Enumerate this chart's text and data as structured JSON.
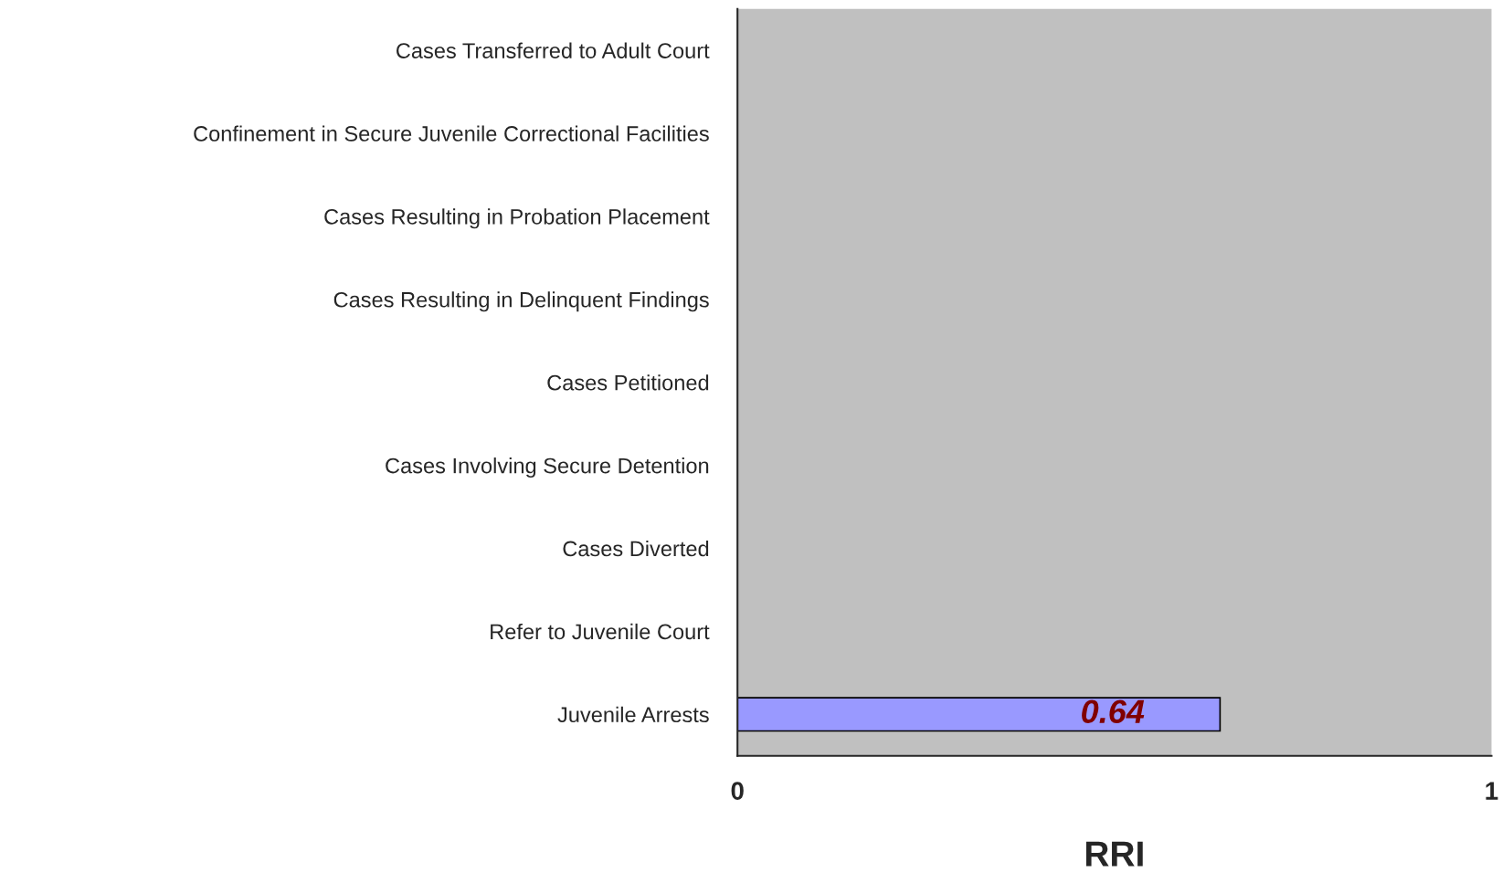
{
  "chart_data": {
    "type": "bar",
    "orientation": "horizontal",
    "xlabel": "RRI",
    "categories": [
      "Cases Transferred to Adult Court",
      "Confinement in Secure Juvenile Correctional Facilities",
      "Cases Resulting in Probation Placement",
      "Cases Resulting in Delinquent Findings",
      "Cases Petitioned",
      "Cases Involving Secure Detention",
      "Cases Diverted",
      "Refer to Juvenile Court",
      "Juvenile Arrests"
    ],
    "values": [
      null,
      null,
      null,
      null,
      null,
      null,
      null,
      null,
      0.64
    ],
    "color": "#9999ff",
    "xlim": [
      0,
      1
    ],
    "xticks": [
      0,
      1
    ],
    "data_labels": true,
    "grid": false,
    "legend": false
  }
}
